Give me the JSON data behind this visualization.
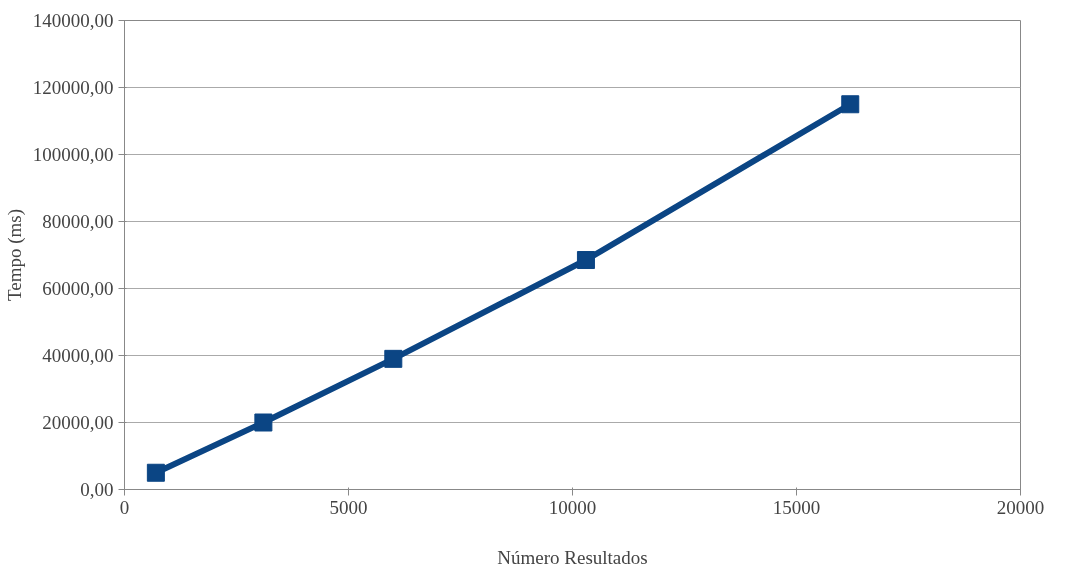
{
  "chart_data": {
    "type": "line",
    "xlabel": "Número Resultados",
    "ylabel": "Tempo (ms)",
    "x": [
      700,
      3100,
      6000,
      10300,
      16200
    ],
    "series": [
      {
        "color": "#0b4584",
        "values": [
          5000,
          20000,
          39000,
          68500,
          115000
        ]
      }
    ],
    "xlim": [
      0,
      20000
    ],
    "xticks": [
      0,
      5000,
      10000,
      15000,
      20000
    ],
    "ylim": [
      0,
      140000
    ],
    "yticks": [
      {
        "value": 0,
        "label": "0,00"
      },
      {
        "value": 20000,
        "label": "20000,00"
      },
      {
        "value": 40000,
        "label": "40000,00"
      },
      {
        "value": 60000,
        "label": "60000,00"
      },
      {
        "value": 80000,
        "label": "80000,00"
      },
      {
        "value": 100000,
        "label": "100000,00"
      },
      {
        "value": 120000,
        "label": "120000,00"
      },
      {
        "value": 140000,
        "label": "140000,00"
      }
    ],
    "grid": "y",
    "marker": "square",
    "line_style": "solid"
  }
}
